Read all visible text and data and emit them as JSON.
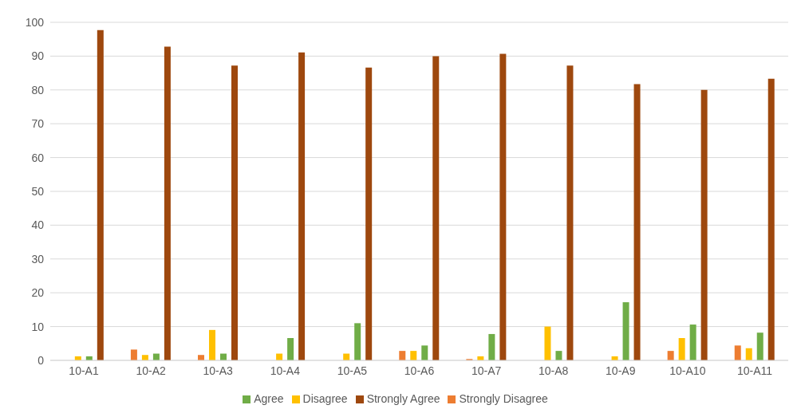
{
  "chart_data": {
    "type": "bar",
    "categories": [
      "10-A1",
      "10-A2",
      "10-A3",
      "10-A4",
      "10-A5",
      "10-A6",
      "10-A7",
      "10-A8",
      "10-A9",
      "10-A10",
      "10-A11"
    ],
    "series": [
      {
        "name": "Strongly Disagree",
        "color": "#ed7d31",
        "values": [
          0,
          3.2,
          1.6,
          0,
          0,
          2.8,
          0.4,
          0,
          0,
          2.8,
          4.4
        ]
      },
      {
        "name": "Disagree",
        "color": "#ffc000",
        "values": [
          1.2,
          1.6,
          9,
          2,
          2,
          2.8,
          1.2,
          10,
          1.2,
          6.6,
          3.6
        ]
      },
      {
        "name": "Agree",
        "color": "#70ad47",
        "values": [
          1.2,
          2,
          2,
          6.6,
          11,
          4.4,
          7.8,
          2.8,
          17.2,
          10.6,
          8.2
        ]
      },
      {
        "name": "Strongly Agree",
        "color": "#9e480e",
        "values": [
          97.7,
          92.8,
          87.2,
          91.1,
          86.6,
          90,
          90.7,
          87.2,
          81.7,
          80,
          83.3
        ]
      }
    ],
    "ylim": [
      0,
      100
    ],
    "yticks": [
      0,
      10,
      20,
      30,
      40,
      50,
      60,
      70,
      80,
      90,
      100
    ],
    "grid": "y",
    "legend": "bottom"
  }
}
